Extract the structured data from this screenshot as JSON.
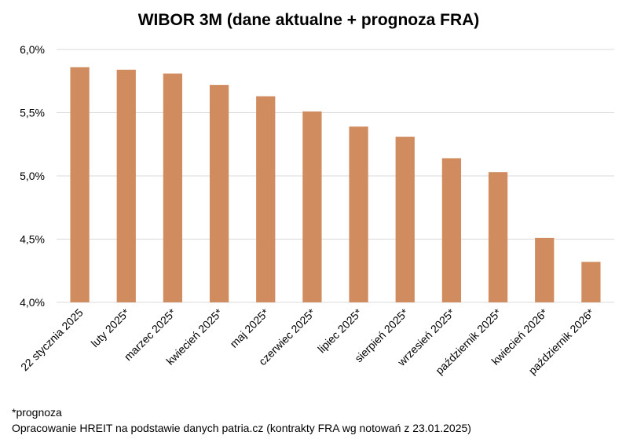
{
  "chart_data": {
    "type": "bar",
    "title": "WIBOR 3M (dane aktualne + prognoza FRA)",
    "categories": [
      "22 stycznia 2025",
      "luty 2025*",
      "marzec 2025*",
      "kwiecień 2025*",
      "maj 2025*",
      "czerwiec 2025*",
      "lipiec 2025*",
      "sierpień 2025*",
      "wrzesień 2025*",
      "październik 2025*",
      "kwiecień 2026*",
      "październik 2026*"
    ],
    "values": [
      5.86,
      5.84,
      5.81,
      5.72,
      5.63,
      5.51,
      5.39,
      5.31,
      5.14,
      5.03,
      4.51,
      4.32
    ],
    "ylim": [
      4.0,
      6.0
    ],
    "yticks": [
      4.0,
      4.5,
      5.0,
      5.5,
      6.0
    ],
    "ytick_labels": [
      "4,0%",
      "4,5%",
      "5,0%",
      "5,5%",
      "6,0%"
    ],
    "xlabel": "",
    "ylabel": "",
    "grid": true,
    "bar_color": "#d08c5f",
    "grid_color": "#d9d9d9"
  },
  "footnotes": {
    "note": "*prognoza",
    "source": "Opracowanie HREIT na podstawie danych patria.cz (kontrakty FRA wg notowań z 23.01.2025)"
  }
}
